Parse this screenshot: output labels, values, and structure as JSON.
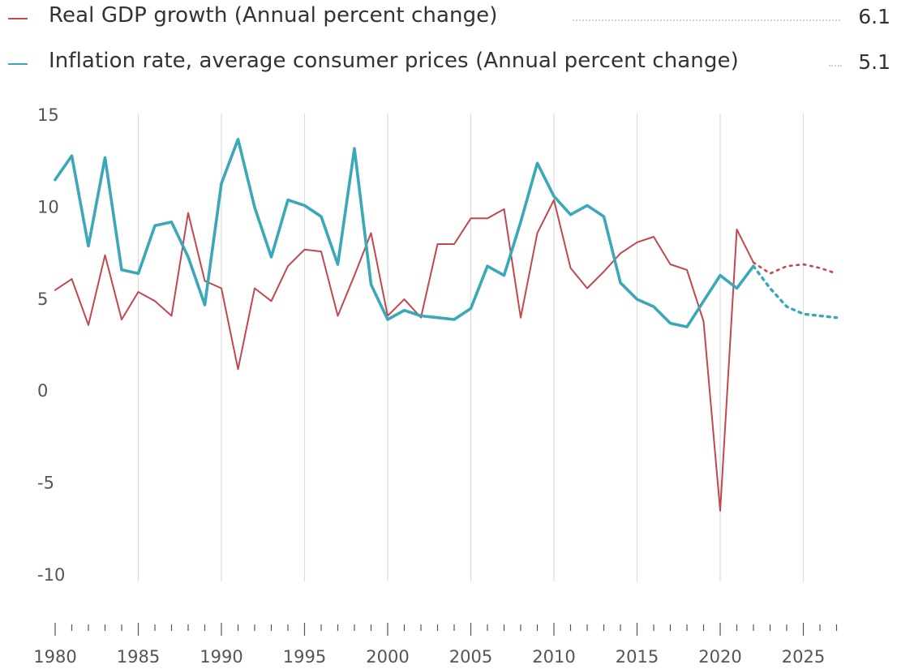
{
  "legend": [
    {
      "label": "Real GDP growth (Annual percent change)",
      "value": "6.1",
      "color": "#c2474f"
    },
    {
      "label": "Inflation rate, average consumer prices (Annual percent change)",
      "value": "5.1",
      "color": "#3aa8b8"
    }
  ],
  "chart_data": {
    "type": "line",
    "ylim": [
      -10,
      15
    ],
    "xlim": [
      1980,
      2027
    ],
    "y_ticks": [
      "15",
      "10",
      "5",
      "0",
      "-5",
      "-10"
    ],
    "x_ticks": [
      "1980",
      "1985",
      "1990",
      "1995",
      "2000",
      "2005",
      "2010",
      "2015",
      "2020",
      "2025"
    ],
    "grid": "vertical at every 5 years",
    "series": [
      {
        "name": "Real GDP growth (Annual percent change)",
        "color": "#c2474f",
        "x": [
          1980,
          1981,
          1982,
          1983,
          1984,
          1985,
          1986,
          1987,
          1988,
          1989,
          1990,
          1991,
          1992,
          1993,
          1994,
          1995,
          1996,
          1997,
          1998,
          1999,
          2000,
          2001,
          2002,
          2003,
          2004,
          2005,
          2006,
          2007,
          2008,
          2009,
          2010,
          2011,
          2012,
          2013,
          2014,
          2015,
          2016,
          2017,
          2018,
          2019,
          2020,
          2021,
          2022
        ],
        "values": [
          5.4,
          6.0,
          3.5,
          7.3,
          3.8,
          5.3,
          4.8,
          4.0,
          9.6,
          5.9,
          5.5,
          1.1,
          5.5,
          4.8,
          6.7,
          7.6,
          7.5,
          4.0,
          6.2,
          8.5,
          4.0,
          4.9,
          3.9,
          7.9,
          7.9,
          9.3,
          9.3,
          9.8,
          3.9,
          8.5,
          10.3,
          6.6,
          5.5,
          6.4,
          7.4,
          8.0,
          8.3,
          6.8,
          6.5,
          3.7,
          -6.6,
          8.7,
          6.9
        ],
        "projection_x": [
          2022,
          2023,
          2024,
          2025,
          2026,
          2027
        ],
        "projection_values": [
          6.9,
          6.3,
          6.7,
          6.8,
          6.6,
          6.3
        ]
      },
      {
        "name": "Inflation rate, average consumer prices (Annual percent change)",
        "color": "#3aa8b8",
        "x": [
          1980,
          1981,
          1982,
          1983,
          1984,
          1985,
          1986,
          1987,
          1988,
          1989,
          1990,
          1991,
          1992,
          1993,
          1994,
          1995,
          1996,
          1997,
          1998,
          1999,
          2000,
          2001,
          2002,
          2003,
          2004,
          2005,
          2006,
          2007,
          2008,
          2009,
          2010,
          2011,
          2012,
          2013,
          2014,
          2015,
          2016,
          2017,
          2018,
          2019,
          2020,
          2021,
          2022
        ],
        "values": [
          11.4,
          12.7,
          7.8,
          12.6,
          6.5,
          6.3,
          8.9,
          9.1,
          7.2,
          4.6,
          11.2,
          13.6,
          9.9,
          7.2,
          10.3,
          10.0,
          9.4,
          6.8,
          13.1,
          5.7,
          3.8,
          4.3,
          4.0,
          3.9,
          3.8,
          4.4,
          6.7,
          6.2,
          9.1,
          12.3,
          10.5,
          9.5,
          10.0,
          9.4,
          5.8,
          4.9,
          4.5,
          3.6,
          3.4,
          4.8,
          6.2,
          5.5,
          6.7
        ],
        "projection_x": [
          2022,
          2023,
          2024,
          2025,
          2026,
          2027
        ],
        "projection_values": [
          6.7,
          5.5,
          4.5,
          4.1,
          4.0,
          3.9
        ]
      }
    ]
  }
}
